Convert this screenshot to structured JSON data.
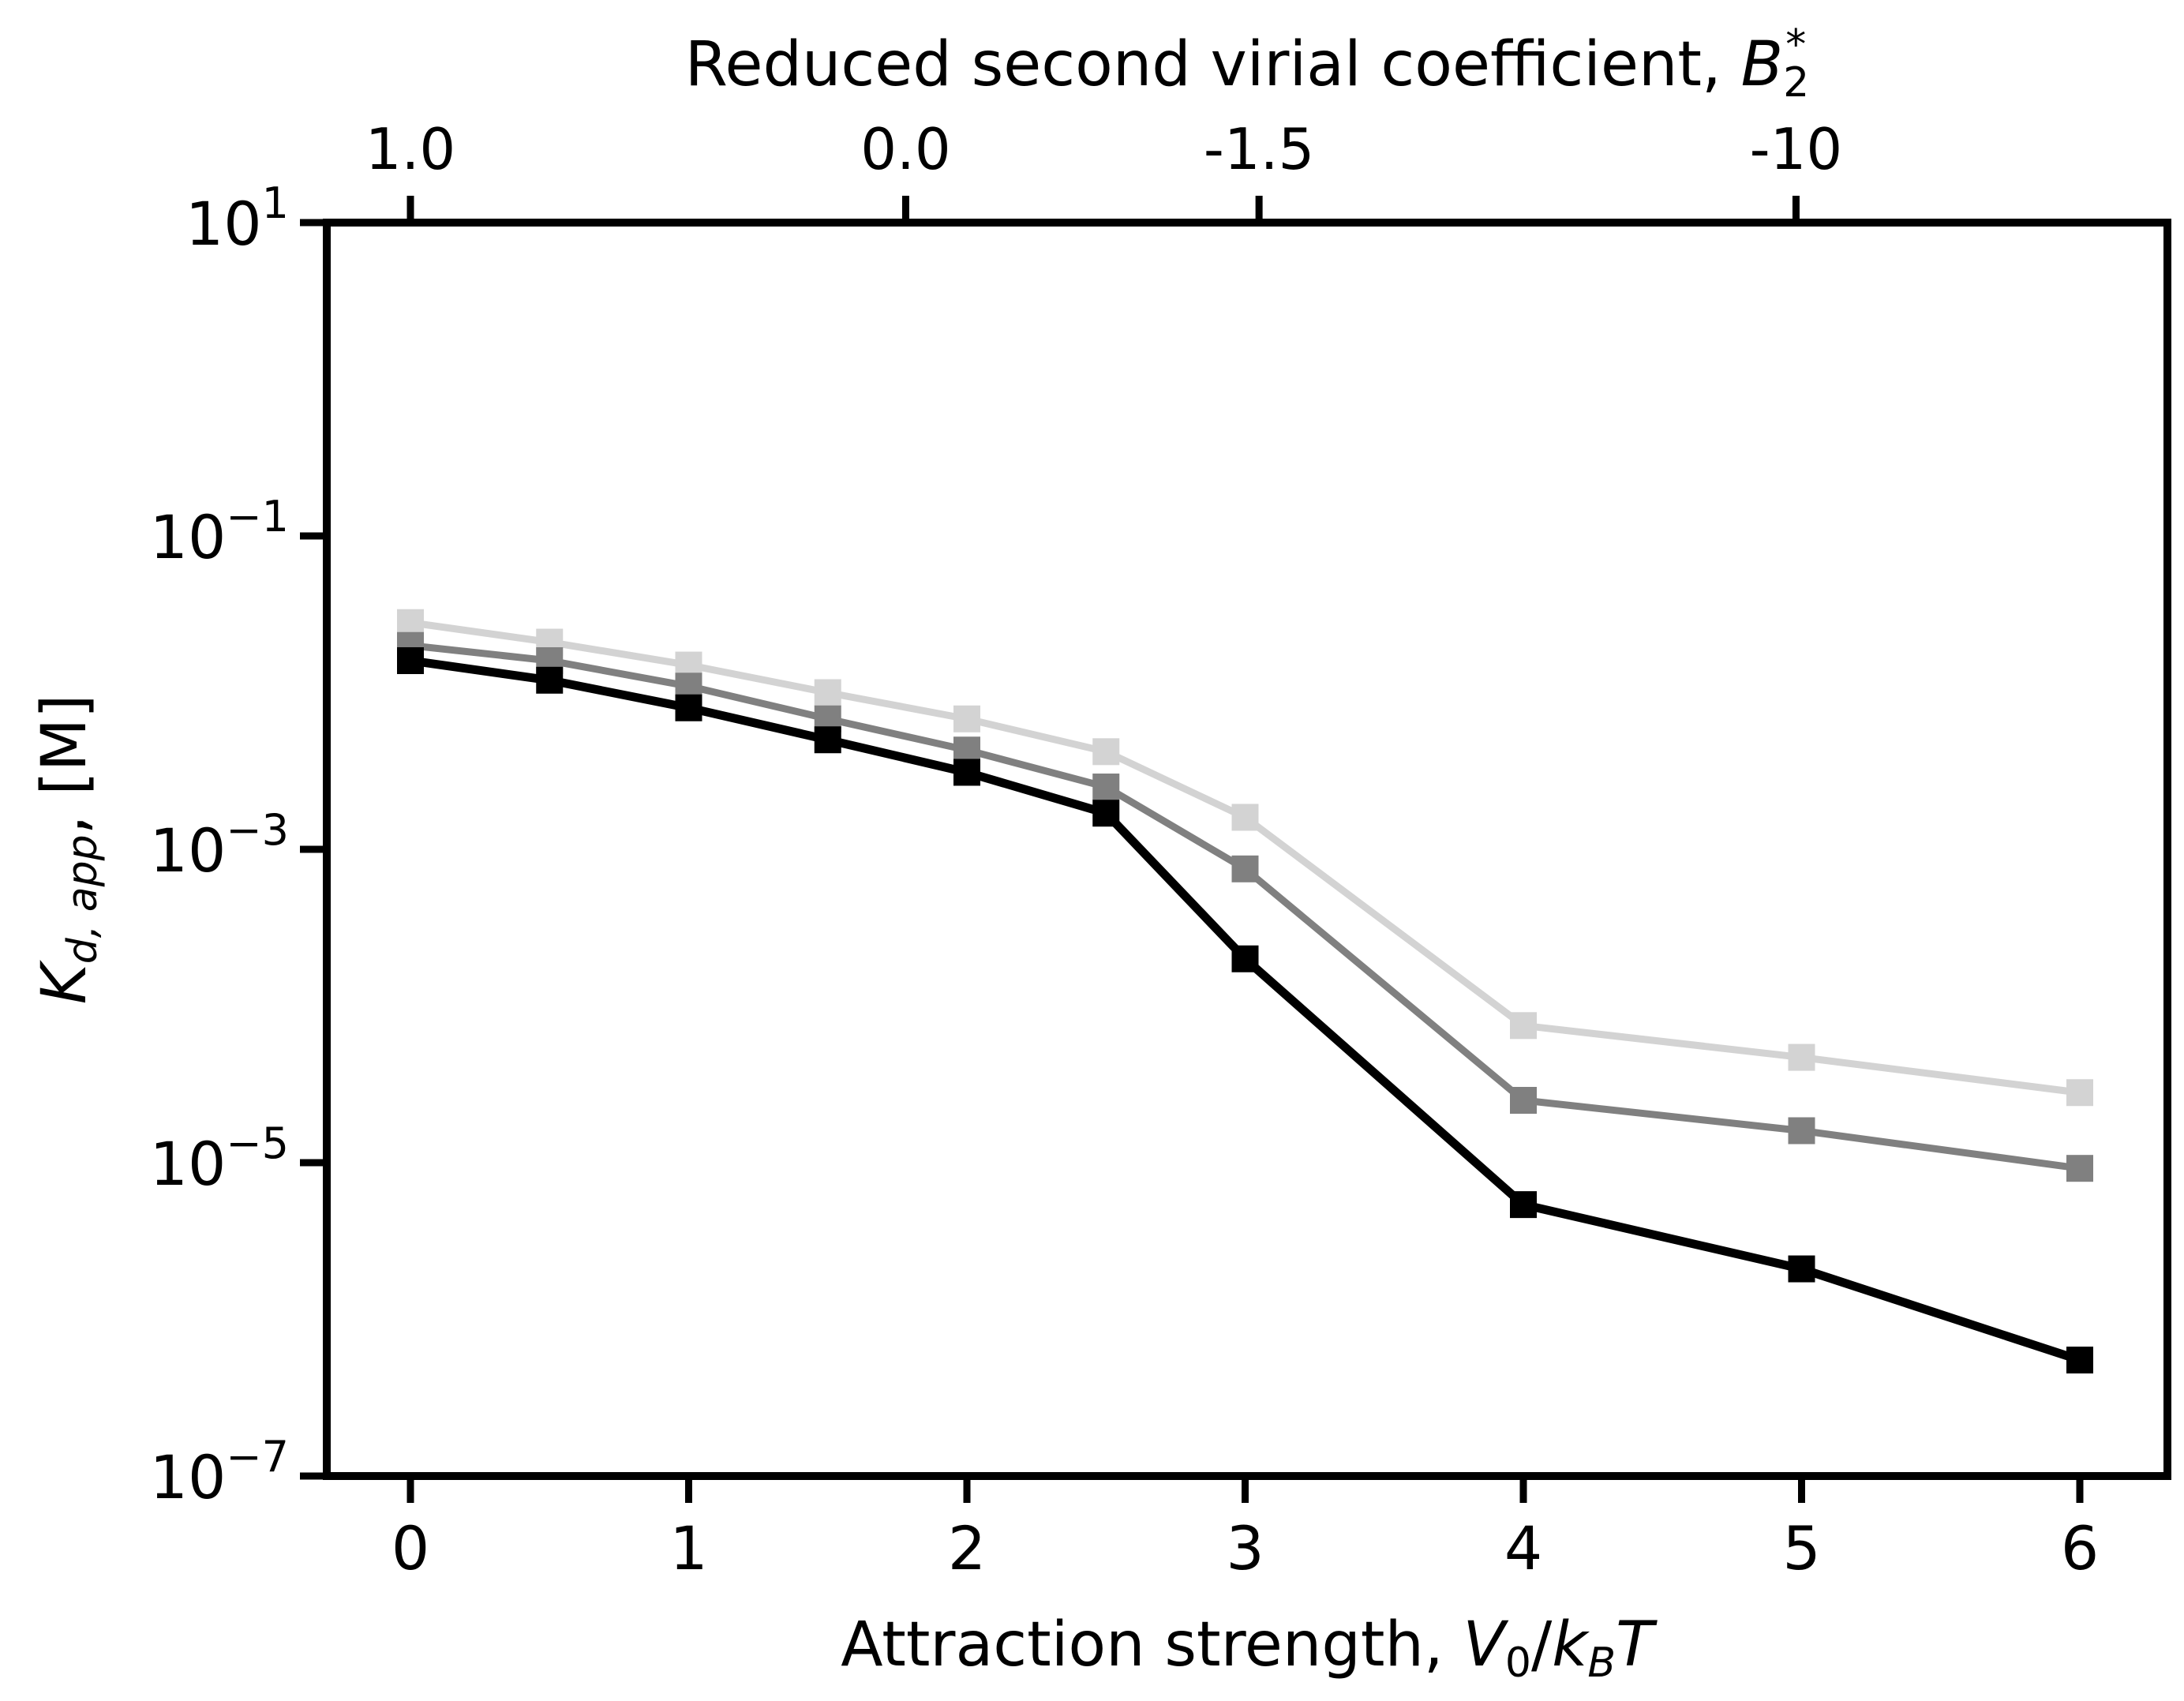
{
  "chart_data": {
    "type": "line",
    "title": "",
    "xlabel": "Attraction strength, V0/kBT",
    "ylabel": "Kd,app, [M]",
    "top_xlabel": "Reduced second virial coefficient, B2*",
    "xlim": [
      -0.3,
      6.25
    ],
    "ylim": [
      1e-07,
      10
    ],
    "yscale": "log",
    "grid": false,
    "legend": "none",
    "x_ticks": [
      "0",
      "1",
      "2",
      "3",
      "4",
      "5",
      "6"
    ],
    "y_ticks": [
      {
        "value": 10,
        "base": "10",
        "exp": "1"
      },
      {
        "value": 0.1,
        "base": "10",
        "exp": "−1"
      },
      {
        "value": 0.001,
        "base": "10",
        "exp": "−3"
      },
      {
        "value": 1e-05,
        "base": "10",
        "exp": "−5"
      },
      {
        "value": 1e-07,
        "base": "10",
        "exp": "−7"
      }
    ],
    "top_ticks": [
      {
        "label": "1.0",
        "x": 0
      },
      {
        "label": "0.0",
        "x": 1.78
      },
      {
        "label": "-1.5",
        "x": 3.05
      },
      {
        "label": "-10",
        "x": 4.98
      }
    ],
    "x": [
      0,
      0.5,
      1,
      1.5,
      2,
      2.5,
      3,
      4,
      5,
      6
    ],
    "series": [
      {
        "color": "#d3d3d3",
        "values": [
          0.028,
          0.021,
          0.015,
          0.01,
          0.0068,
          0.0042,
          0.0016,
          7.5e-05,
          4.7e-05,
          2.8e-05
        ]
      },
      {
        "color": "#808080",
        "values": [
          0.02,
          0.016,
          0.011,
          0.0068,
          0.0043,
          0.0025,
          0.00075,
          2.5e-05,
          1.6e-05,
          9.2e-06
        ]
      },
      {
        "color": "#000000",
        "values": [
          0.016,
          0.012,
          0.008,
          0.005,
          0.0031,
          0.0017,
          0.0002,
          5.4e-06,
          2.1e-06,
          5.5e-07
        ]
      }
    ]
  }
}
